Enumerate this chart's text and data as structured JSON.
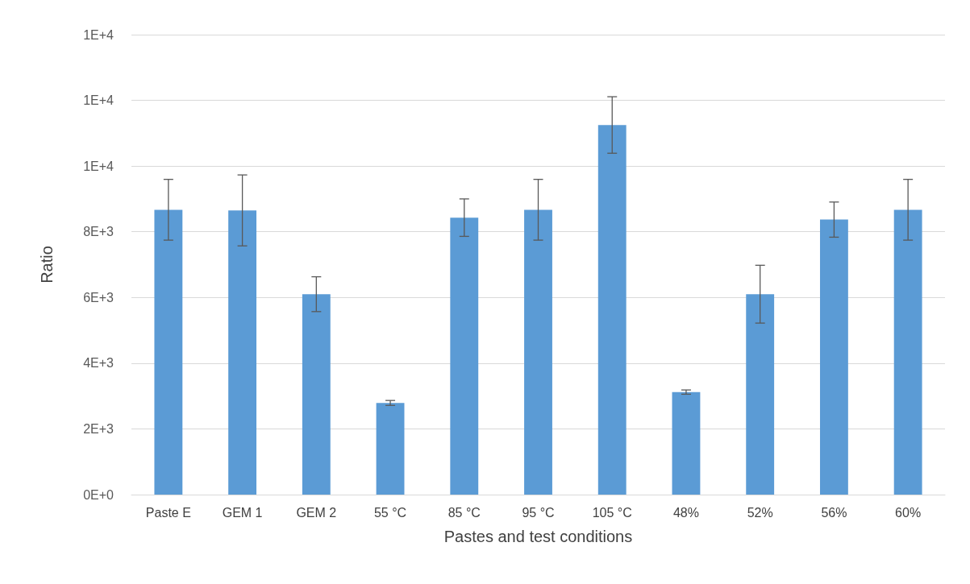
{
  "chart_data": {
    "type": "bar",
    "xlabel": "Pastes and test conditions",
    "ylabel": "Ratio",
    "categories": [
      "Paste E",
      "GEM 1",
      "GEM 2",
      "55 °C",
      "85 °C",
      "95 °C",
      "105 °C",
      "48%",
      "52%",
      "56%",
      "60%"
    ],
    "values": [
      8670,
      8650,
      6100,
      2790,
      8430,
      8670,
      11250,
      3120,
      6100,
      8370,
      8670
    ],
    "errors": [
      925,
      1080,
      530,
      75,
      570,
      925,
      860,
      65,
      880,
      535,
      925
    ],
    "color": "#5b9bd5",
    "ylim": [
      0,
      14000
    ],
    "yticks": [
      {
        "value": 0,
        "label": "0E+0"
      },
      {
        "value": 2000,
        "label": "2E+3"
      },
      {
        "value": 4000,
        "label": "4E+3"
      },
      {
        "value": 6000,
        "label": "6E+3"
      },
      {
        "value": 8000,
        "label": "8E+3"
      },
      {
        "value": 10000,
        "label": "1E+4"
      },
      {
        "value": 12000,
        "label": "1E+4"
      },
      {
        "value": 14000,
        "label": "1E+4"
      }
    ],
    "grid": "y"
  }
}
